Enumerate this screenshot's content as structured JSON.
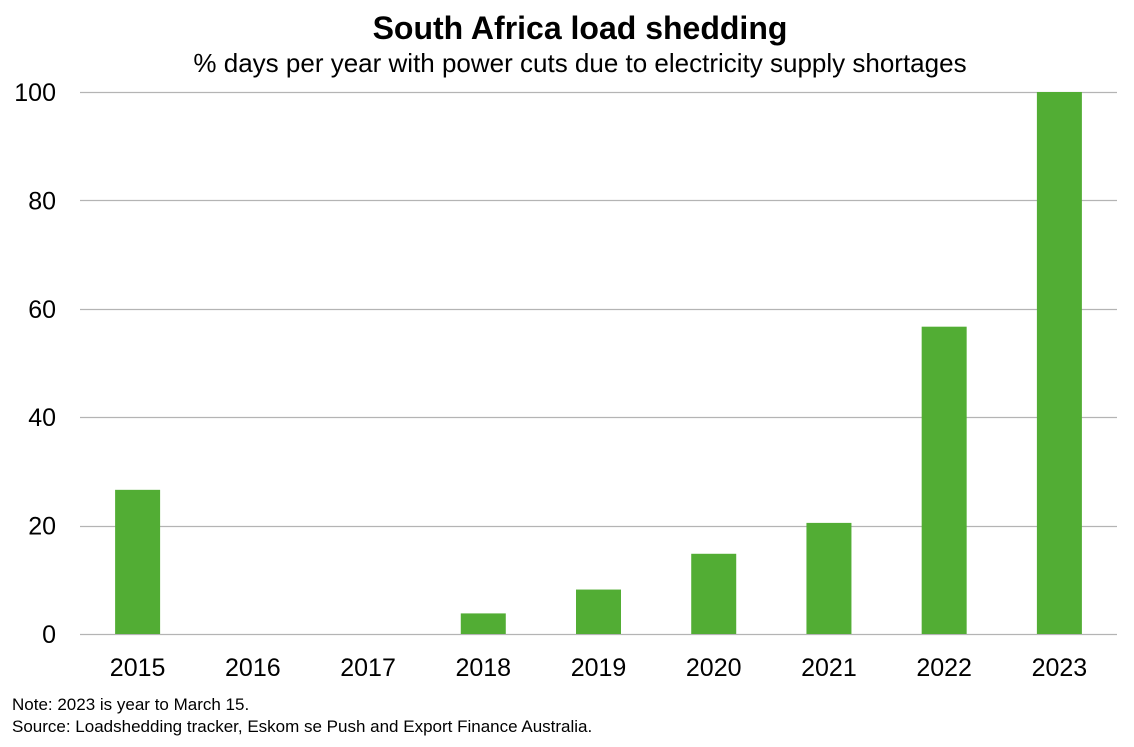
{
  "chart_data": {
    "type": "bar",
    "title": "South Africa load shedding",
    "subtitle": "% days per year with power cuts due to electricity supply shortages",
    "categories": [
      "2015",
      "2016",
      "2017",
      "2018",
      "2019",
      "2020",
      "2021",
      "2022",
      "2023"
    ],
    "values": [
      26.6,
      0,
      0,
      3.8,
      8.2,
      14.8,
      20.5,
      56.7,
      100
    ],
    "ylim": [
      0,
      100
    ],
    "yticks": [
      0,
      20,
      40,
      60,
      80,
      100
    ],
    "xlabel": "",
    "ylabel": "",
    "grid": true,
    "legend": "none",
    "bar_color": "#52ad34",
    "grid_color": "#b4b4b4"
  },
  "notes": {
    "note": "Note: 2023 is year to March 15.",
    "source": "Source: Loadshedding tracker, Eskom se Push and Export Finance Australia."
  }
}
